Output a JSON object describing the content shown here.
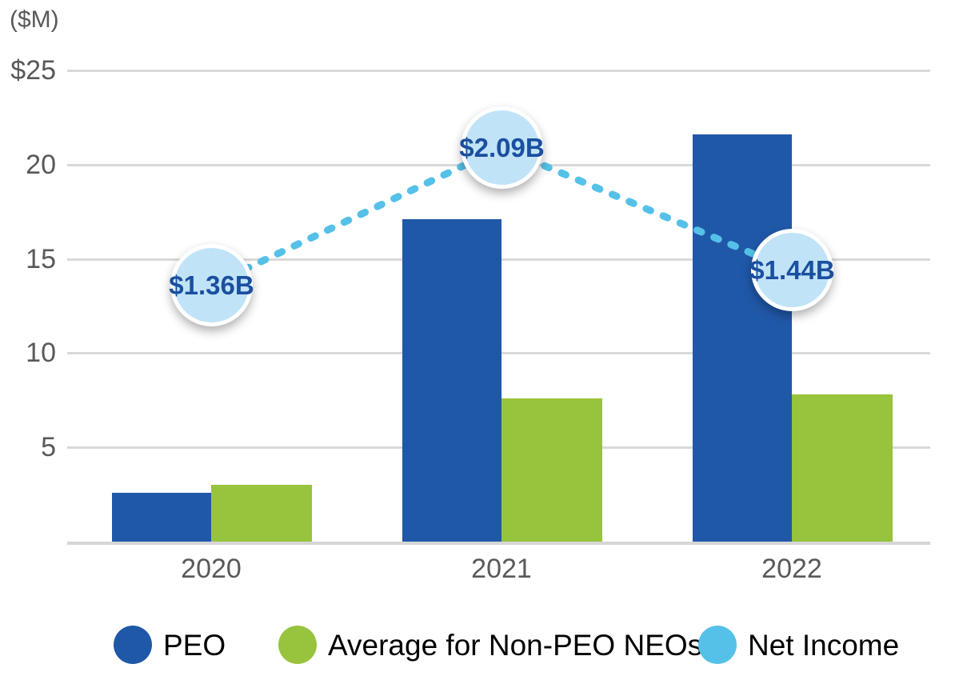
{
  "chart_data": {
    "type": "combo-bar-line",
    "title": "",
    "unit_label": "($M)",
    "categories": [
      "2020",
      "2021",
      "2022"
    ],
    "series": [
      {
        "name": "PEO",
        "type": "bar",
        "color": "#2058A8",
        "values": [
          2.6,
          17.1,
          21.6
        ]
      },
      {
        "name": "Average for Non-PEO NEOs",
        "type": "bar",
        "color": "#98C33D",
        "values": [
          3.0,
          7.6,
          7.8
        ]
      },
      {
        "name": "Net Income",
        "type": "line",
        "line_style": "dotted",
        "color": "#55C1E8",
        "unit": "$B",
        "values": [
          1.36,
          2.09,
          1.44
        ],
        "axis_values": [
          13.6,
          20.9,
          14.4
        ],
        "point_labels": [
          "$1.36B",
          "$2.09B",
          "$1.44B"
        ],
        "point_label_text_color": "#1B4F9F",
        "point_bubble_fill": "#C0E3F7"
      }
    ],
    "yticks": [
      {
        "label": "$25",
        "value": 25
      },
      {
        "label": "20",
        "value": 20
      },
      {
        "label": "15",
        "value": 15
      },
      {
        "label": "10",
        "value": 10
      },
      {
        "label": "5",
        "value": 5
      }
    ],
    "ylim": [
      0,
      25
    ],
    "grid": "horizontal",
    "gridline_color": "#D9D9D9",
    "axis_text_color": "#595959",
    "legend_position": "bottom"
  },
  "legend": {
    "items": [
      {
        "label": "PEO",
        "color": "#2058A8"
      },
      {
        "label": "Average for Non-PEO NEOs",
        "color": "#98C33D"
      },
      {
        "label": "Net Income",
        "color": "#55C1E8"
      }
    ]
  }
}
